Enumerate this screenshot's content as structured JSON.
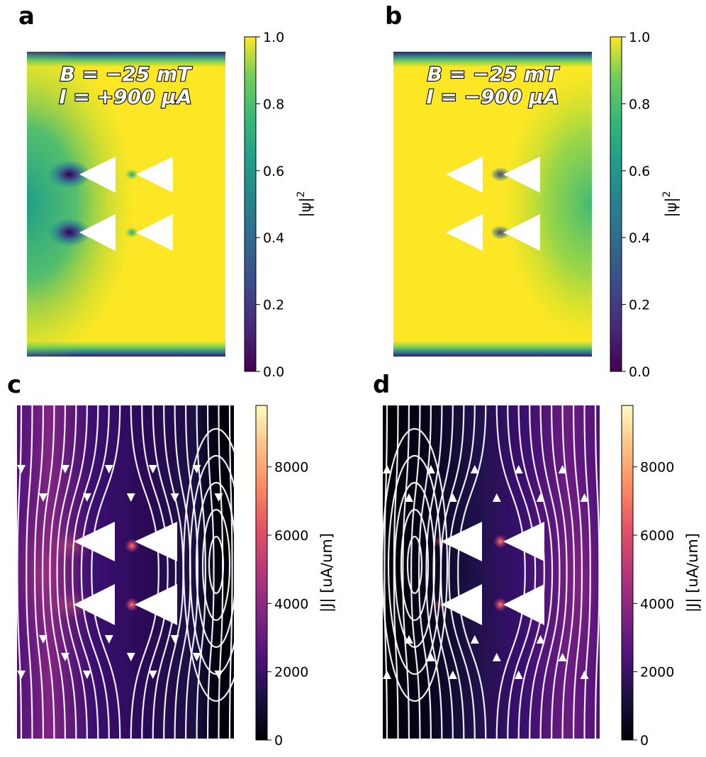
{
  "chart_data": [
    {
      "panel": "a",
      "type": "heatmap",
      "quantity": "|ψ|²",
      "annotation": {
        "B": "B = −25 mT",
        "I": "I = +900 μA"
      },
      "colormap": "viridis",
      "colorbar": {
        "label": "|ψ|²",
        "range": [
          0.0,
          1.0
        ],
        "ticks": [
          "0.0",
          "0.2",
          "0.4",
          "0.6",
          "0.8",
          "1.0"
        ]
      },
      "notes": "suppressed order parameter on left side; dark spots at left tips of left triangles"
    },
    {
      "panel": "b",
      "type": "heatmap",
      "quantity": "|ψ|²",
      "annotation": {
        "B": "B = −25 mT",
        "I": "I = −900 μA"
      },
      "colormap": "viridis",
      "colorbar": {
        "label": "|ψ|²",
        "range": [
          0.0,
          1.0
        ],
        "ticks": [
          "0.0",
          "0.2",
          "0.4",
          "0.6",
          "0.8",
          "1.0"
        ]
      },
      "notes": "suppression on right side; dark spots at left tips of right triangles"
    },
    {
      "panel": "c",
      "type": "heatmap",
      "quantity": "|J| current density with streamlines",
      "colormap": "magma",
      "colorbar": {
        "label": "|J| [uA/um]",
        "range": [
          0,
          9800
        ],
        "ticks": [
          "0",
          "2000",
          "4000",
          "6000",
          "8000"
        ]
      },
      "notes": "high current density on left side; vortex on right"
    },
    {
      "panel": "d",
      "type": "heatmap",
      "quantity": "|J| current density with streamlines",
      "colormap": "magma",
      "colorbar": {
        "label": "|J| [uA/um]",
        "range": [
          0,
          9800
        ],
        "ticks": [
          "0",
          "2000",
          "4000",
          "6000",
          "8000"
        ]
      },
      "notes": "vortex loop on left side; high current density on right"
    }
  ],
  "labels": {
    "a": "a",
    "b": "b",
    "c": "c",
    "d": "d"
  },
  "colorbars": {
    "psi": {
      "label": "|ψ|",
      "sup": "2",
      "ticks": [
        "0.0",
        "0.2",
        "0.4",
        "0.6",
        "0.8",
        "1.0"
      ]
    },
    "J": {
      "label": "|J| [uA/um]",
      "ticks": [
        "0",
        "2000",
        "4000",
        "6000",
        "8000"
      ]
    }
  },
  "colors": {
    "viridis_low": "#440154",
    "viridis_mid": "#21918c",
    "viridis_high": "#fde725",
    "magma_low": "#000004",
    "magma_mid": "#b73779",
    "magma_high": "#fcfdbf"
  }
}
